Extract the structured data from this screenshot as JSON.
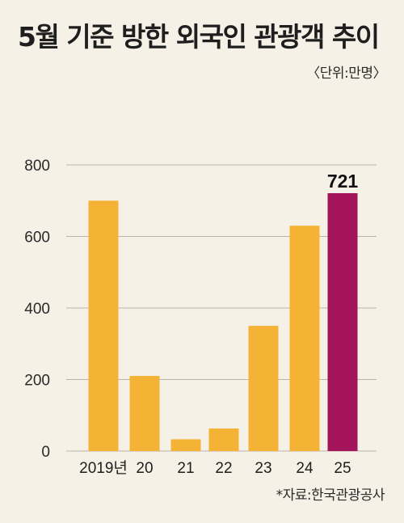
{
  "title": "5월 기준 방한 외국인 관광객 추이",
  "unit": "〈단위:만명〉",
  "source": "*자료:한국관광공사",
  "colors": {
    "bar": "#f5b335",
    "highlight": "#a3145a",
    "grid": "#b9b3a8",
    "background": "#f6f1e7"
  },
  "chart_data": {
    "type": "bar",
    "categories": [
      "2019년",
      "20",
      "21",
      "22",
      "23",
      "24",
      "25"
    ],
    "values": [
      700,
      210,
      33,
      63,
      350,
      630,
      721
    ],
    "highlight_index": 6,
    "data_labels": [
      {
        "index": 6,
        "text": "721"
      }
    ],
    "yticks": [
      0,
      200,
      400,
      600,
      800
    ],
    "ylim": [
      0,
      800
    ],
    "grid": true,
    "legend": "none"
  }
}
